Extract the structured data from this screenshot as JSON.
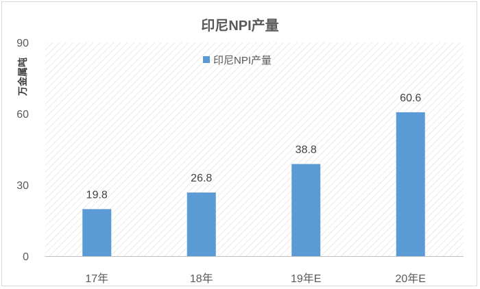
{
  "chart_data": {
    "type": "bar",
    "title": "印尼NPI产量",
    "ylabel": "万金属吨",
    "xlabel": "",
    "categories": [
      "17年",
      "18年",
      "19年E",
      "20年E"
    ],
    "series": [
      {
        "name": "印尼NPI产量",
        "values": [
          19.8,
          26.8,
          38.8,
          60.6
        ]
      }
    ],
    "ylim": [
      0,
      90
    ],
    "yticks": [
      0,
      30,
      60,
      90
    ],
    "grid": false,
    "legend": "top-center",
    "colors": {
      "bar": "#5b9bd5",
      "hatch": "#d9d9d9",
      "axis": "#bfbfbf"
    }
  }
}
